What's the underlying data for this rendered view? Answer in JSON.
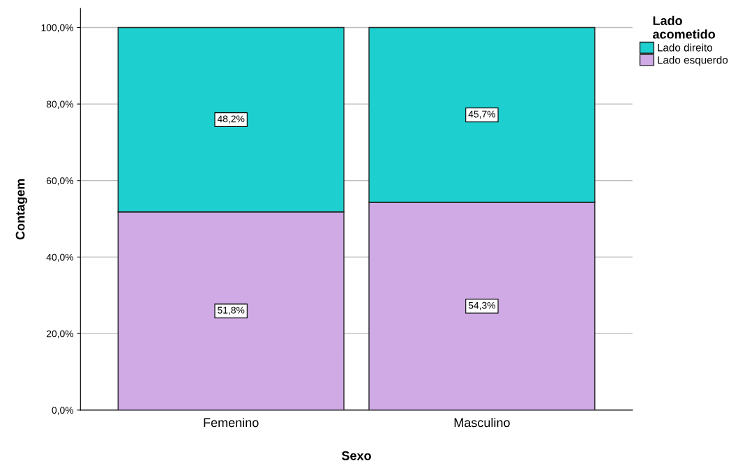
{
  "chart_data": {
    "type": "bar",
    "stacked": true,
    "xlabel": "Sexo",
    "ylabel": "Contagem",
    "legend_title": "Lado\nacometido",
    "categories": [
      "Femenino",
      "Masculino"
    ],
    "series": [
      {
        "name": "Lado esquerdo",
        "color": "#cfaae5",
        "values": [
          51.8,
          54.3
        ],
        "value_labels": [
          "51,8%",
          "54,3%"
        ]
      },
      {
        "name": "Lado direito",
        "color": "#1ecfcf",
        "values": [
          48.2,
          45.7
        ],
        "value_labels": [
          "48,2%",
          "45,7%"
        ]
      }
    ],
    "ylim": [
      0,
      105
    ],
    "yticks": [
      {
        "value": 0,
        "label": "0,0%"
      },
      {
        "value": 20,
        "label": "20,0%"
      },
      {
        "value": 40,
        "label": "40,0%"
      },
      {
        "value": 60,
        "label": "60,0%"
      },
      {
        "value": 80,
        "label": "80,0%"
      },
      {
        "value": 100,
        "label": "100,0%"
      }
    ],
    "grid": "y",
    "legend": "top right"
  }
}
